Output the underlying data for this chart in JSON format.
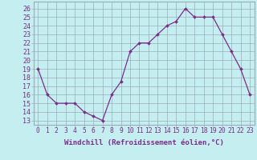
{
  "x": [
    0,
    1,
    2,
    3,
    4,
    5,
    6,
    7,
    8,
    9,
    10,
    11,
    12,
    13,
    14,
    15,
    16,
    17,
    18,
    19,
    20,
    21,
    22,
    23
  ],
  "y": [
    19,
    16,
    15,
    15,
    15,
    14,
    13.5,
    13,
    16,
    17.5,
    21,
    22,
    22,
    23,
    24,
    24.5,
    26,
    25,
    25,
    25,
    23,
    21,
    19,
    16
  ],
  "line_color": "#7B2D8B",
  "marker_color": "#7B2D8B",
  "bg_color": "#C5EEF0",
  "grid_color": "#9AACB8",
  "ylabel_ticks": [
    13,
    14,
    15,
    16,
    17,
    18,
    19,
    20,
    21,
    22,
    23,
    24,
    25,
    26
  ],
  "xlabel": "Windchill (Refroidissement éolien,°C)",
  "ylim": [
    12.5,
    26.8
  ],
  "xlim": [
    -0.5,
    23.5
  ],
  "xlabel_fontsize": 6.5,
  "ytick_fontsize": 6,
  "xtick_fontsize": 5.8,
  "label_color": "#7B2D8B",
  "spine_color": "#9AACB8"
}
